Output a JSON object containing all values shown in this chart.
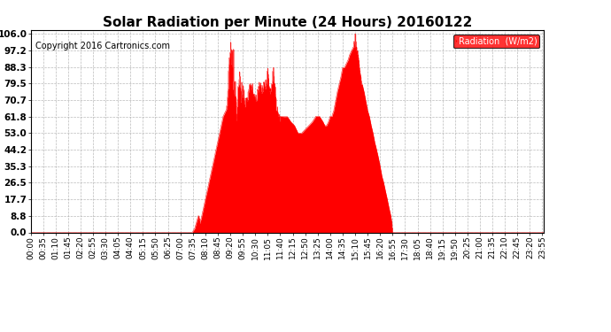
{
  "title": "Solar Radiation per Minute (24 Hours) 20160122",
  "copyright_text": "Copyright 2016 Cartronics.com",
  "fill_color": "#FF0000",
  "background_color": "#FFFFFF",
  "grid_color": "#AAAAAA",
  "yticks": [
    0.0,
    8.8,
    17.7,
    26.5,
    35.3,
    44.2,
    53.0,
    61.8,
    70.7,
    79.5,
    88.3,
    97.2,
    106.0
  ],
  "ymax": 106.0,
  "ymin": 0.0,
  "dashed_zero_color": "#FF0000",
  "legend_bg": "#FF0000",
  "legend_text": "Radiation  (W/m2)",
  "legend_text_color": "#FFFFFF",
  "title_fontsize": 11,
  "copyright_fontsize": 7,
  "tick_fontsize": 6.5,
  "ytick_fontsize": 7.5
}
